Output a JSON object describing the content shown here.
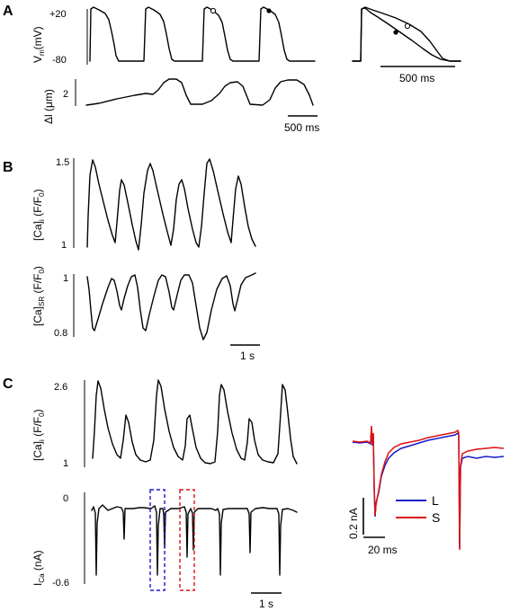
{
  "panels": {
    "a": "A",
    "b": "B",
    "c": "C"
  },
  "panel_a": {
    "vm_label": "V",
    "vm_sub": "m",
    "vm_unit": "(mV)",
    "vm_tick_top": "+20",
    "vm_tick_bottom": "-80",
    "dl_label": "Δl (μm)",
    "dl_tick": "2",
    "scale_label": "500 ms",
    "inset_scale_label": "500 ms",
    "markers": [
      "open-circle",
      "filled-circle"
    ]
  },
  "panel_b": {
    "cai_label": "[Ca]",
    "cai_sub": "i",
    "cai_unit": " (F/F",
    "cai_unit_sub": "0",
    "cai_unit_end": ")",
    "cai_tick_top": "1.5",
    "cai_tick_bottom": "1",
    "casr_label": "[Ca]",
    "casr_sub": "SR",
    "casr_unit": " (F/F",
    "casr_unit_sub": "0",
    "casr_unit_end": ")",
    "casr_tick_top": "1",
    "casr_tick_bottom": "0.8",
    "scale_label": "1 s"
  },
  "panel_c": {
    "cai_label": "[Ca]",
    "cai_sub": "i",
    "cai_unit": " (F/F",
    "cai_unit_sub": "0",
    "cai_unit_end": ")",
    "cai_tick_top": "2.6",
    "cai_tick_bottom": "1",
    "ica_label": "I",
    "ica_sub": "Ca",
    "ica_unit": " (nA)",
    "ica_tick_top": "0",
    "ica_tick_bottom": "-0.6",
    "scale_label": "1 s",
    "box_colors": [
      "#1a1acc",
      "#dd1111"
    ],
    "inset": {
      "current_scale": "0.2 nA",
      "time_scale": "20 ms",
      "legend": [
        {
          "name": "L",
          "color": "#1a1acc"
        },
        {
          "name": "S",
          "color": "#dd1111"
        }
      ]
    }
  }
}
